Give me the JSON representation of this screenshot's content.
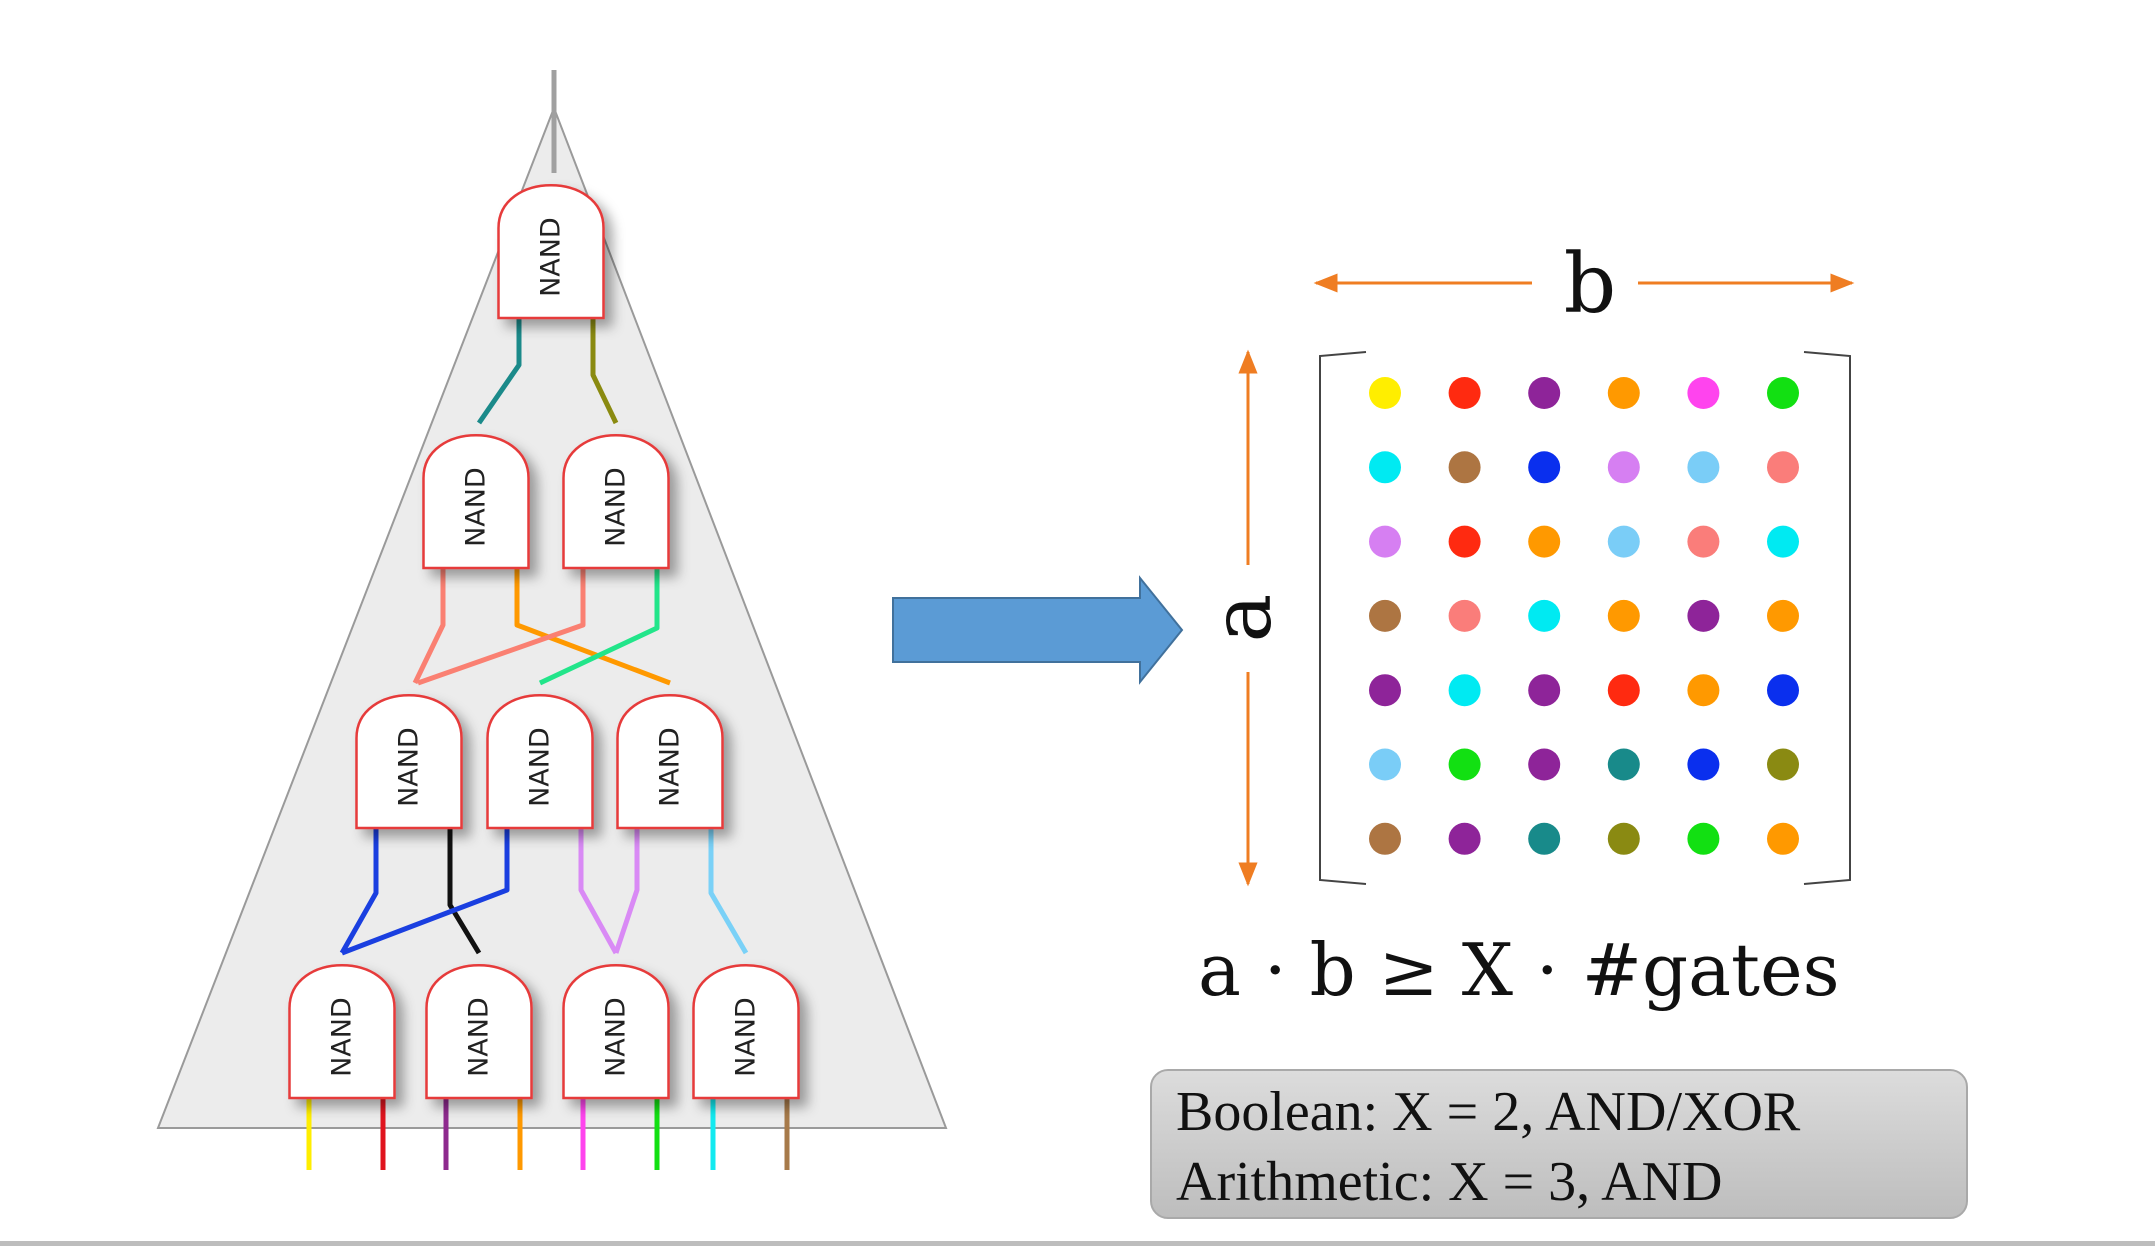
{
  "gate_label": "NAND",
  "tree": {
    "levels": [
      1,
      2,
      3,
      4
    ],
    "wire_colors": {
      "root_output": "#a0a0a0",
      "level1": [
        "#1b8a8a",
        "#8a8a10"
      ],
      "level2": [
        "#fa8072",
        "#ff9900",
        "#fa8072",
        "#22e58a"
      ],
      "level3": [
        "#1a3fe0",
        "#111111",
        "#1a3fe0",
        "#d98af5",
        "#d98af5",
        "#7ad1f7"
      ],
      "inputs": [
        "#ffee00",
        "#e0141e",
        "#8e2a8e",
        "#ff9900",
        "#ff44ee",
        "#12e012",
        "#12eaf0",
        "#a77a4a"
      ]
    },
    "triangle_fill": "#ececec"
  },
  "arrow_color": "#5b9bd5",
  "matrix": {
    "width_label": "b",
    "height_label": "a",
    "dimension_arrow_color": "#ef7d22",
    "rows": [
      [
        "#ffee00",
        "#ff2a10",
        "#8e2499",
        "#ff9900",
        "#ff44ee",
        "#12e012"
      ],
      [
        "#00eaf2",
        "#ad7542",
        "#0a2fee",
        "#d67ff2",
        "#7acdf7",
        "#fa7d7a"
      ],
      [
        "#d67ff2",
        "#ff2a10",
        "#ff9900",
        "#7acdf7",
        "#fa7d7a",
        "#00eaf2"
      ],
      [
        "#ad7542",
        "#fa7d7a",
        "#00eaf2",
        "#ff9900",
        "#8e2499",
        "#ff9900"
      ],
      [
        "#8e2499",
        "#00eaf2",
        "#8e2499",
        "#ff2a10",
        "#ff9900",
        "#0a2fee"
      ],
      [
        "#7acdf7",
        "#12e012",
        "#8e2499",
        "#188a8a",
        "#0a2fee",
        "#8a8a12"
      ],
      [
        "#ad7542",
        "#8e2499",
        "#188a8a",
        "#8a8a12",
        "#12e012",
        "#ff9900"
      ]
    ]
  },
  "formula": "a · b ≥ X · #gates",
  "notes": {
    "boolean": "Boolean: X = 2, AND/XOR",
    "arithmetic": "Arithmetic: X = 3, AND"
  }
}
